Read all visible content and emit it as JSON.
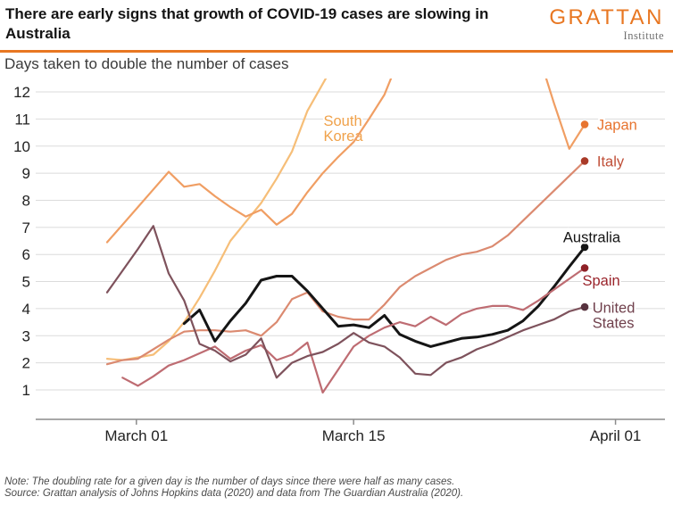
{
  "header": {
    "title": "There are early signs that growth of COVID-19 cases are slowing in Australia",
    "logo": {
      "name": "GRATTAN",
      "sub": "Institute"
    }
  },
  "subtitle": "Days taken to double the number of cases",
  "notes": {
    "note": "Note: The doubling rate for a given day is the number of days since there were half as many cases.",
    "source": "Source: Grattan analysis of Johns Hopkins data (2020) and data from The Guardian Australia (2020)."
  },
  "colors": {
    "accent": "#E87722",
    "grid": "#DBDBDB",
    "axis": "#8C8C8C",
    "tick_text": "#222222"
  },
  "chart_data": {
    "type": "line",
    "title": "Days taken to double the number of cases",
    "grid": true,
    "x_axis": {
      "ticks": [
        {
          "label": "March 01",
          "day": 1.9
        },
        {
          "label": "March 15",
          "day": 16.0
        },
        {
          "label": "April 01",
          "day": 33.0
        }
      ]
    },
    "y_axis": {
      "ticks": [
        1,
        2,
        3,
        4,
        5,
        6,
        7,
        8,
        9,
        10,
        11,
        12
      ],
      "range": [
        0,
        12.4
      ]
    },
    "series": [
      {
        "name": "South Korea",
        "label_lines": [
          "South",
          "Korea"
        ],
        "label_pos": {
          "day": 14.05,
          "value": 10.75
        },
        "color": "#F6BE78",
        "label_color": "#F0A24B",
        "end_dot": false,
        "values": [
          2.15,
          2.1,
          2.2,
          2.3,
          2.8,
          3.5,
          4.4,
          5.4,
          6.5,
          7.2,
          7.9,
          8.8,
          9.8,
          11.3,
          12.3,
          13.3
        ]
      },
      {
        "name": "Japan",
        "label_lines": [
          "Japan"
        ],
        "label_pos": {
          "day": 31.8,
          "value": 10.6
        },
        "color": "#F09E63",
        "label_color": "#E7742F",
        "dot_color": "#E7742F",
        "end_dot": true,
        "values": [
          6.45,
          7.1,
          7.75,
          8.4,
          9.05,
          8.5,
          8.6,
          8.15,
          7.75,
          7.4,
          7.65,
          7.1,
          7.5,
          8.3,
          9.0,
          9.6,
          10.15,
          11.0,
          11.9,
          13.3,
          14.5,
          14.5,
          14.5,
          14.5,
          14.5,
          14.5,
          14.5,
          14.5,
          13.4,
          11.6,
          9.9,
          10.8
        ]
      },
      {
        "name": "Italy",
        "label_lines": [
          "Italy"
        ],
        "label_pos": {
          "day": 31.8,
          "value": 9.25
        },
        "color": "#DB8A70",
        "label_color": "#C04F38",
        "dot_color": "#A93A28",
        "end_dot": true,
        "values": [
          1.95,
          2.1,
          2.15,
          2.5,
          2.85,
          3.15,
          3.2,
          3.2,
          3.15,
          3.2,
          3.0,
          3.5,
          4.35,
          4.6,
          3.9,
          3.7,
          3.6,
          3.6,
          4.15,
          4.8,
          5.2,
          5.5,
          5.8,
          6.0,
          6.1,
          6.3,
          6.7,
          7.25,
          7.8,
          8.35,
          8.9,
          9.45
        ]
      },
      {
        "name": "Australia",
        "label_lines": [
          "Australia"
        ],
        "label_pos": {
          "day": 29.6,
          "value": 6.45
        },
        "color": "#151515",
        "label_color": "#141414",
        "dot_color": "#141414",
        "end_dot": true,
        "thick": true,
        "values": [
          null,
          null,
          null,
          null,
          null,
          3.45,
          3.95,
          2.8,
          3.55,
          4.2,
          5.05,
          5.2,
          5.2,
          4.65,
          4.0,
          3.35,
          3.4,
          3.3,
          3.75,
          3.05,
          2.8,
          2.6,
          2.75,
          2.9,
          2.95,
          3.05,
          3.2,
          3.55,
          4.1,
          4.8,
          5.55,
          6.27
        ]
      },
      {
        "name": "Spain",
        "label_lines": [
          "Spain"
        ],
        "label_pos": {
          "day": 30.85,
          "value": 4.85
        },
        "color": "#BE6C72",
        "label_color": "#9A242B",
        "dot_color": "#8E2026",
        "end_dot": true,
        "values": [
          null,
          1.45,
          1.15,
          1.5,
          1.9,
          2.1,
          2.35,
          2.6,
          2.15,
          2.45,
          2.65,
          2.1,
          2.3,
          2.75,
          0.9,
          1.75,
          2.6,
          3.0,
          3.3,
          3.5,
          3.35,
          3.7,
          3.4,
          3.8,
          4.0,
          4.1,
          4.1,
          3.95,
          4.3,
          4.7,
          5.1,
          5.5
        ]
      },
      {
        "name": "United States",
        "label_lines": [
          "United",
          "States"
        ],
        "label_pos": {
          "day": 31.5,
          "value": 3.85
        },
        "color": "#7E525C",
        "label_color": "#70404C",
        "dot_color": "#57323E",
        "end_dot": true,
        "values": [
          4.6,
          5.4,
          6.2,
          7.05,
          5.3,
          4.3,
          2.7,
          2.45,
          2.05,
          2.3,
          2.9,
          1.45,
          2.0,
          2.25,
          2.4,
          2.7,
          3.1,
          2.75,
          2.6,
          2.2,
          1.6,
          1.55,
          2.0,
          2.2,
          2.5,
          2.7,
          2.95,
          3.2,
          3.4,
          3.6,
          3.9,
          4.06
        ]
      }
    ]
  }
}
